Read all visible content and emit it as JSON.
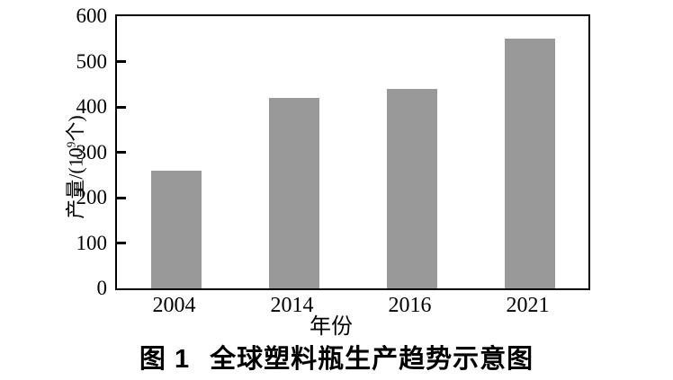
{
  "figure": {
    "caption_label": "图 1",
    "caption_title": "全球塑料瓶生产趋势示意图"
  },
  "chart_data": {
    "type": "bar",
    "categories": [
      "2004",
      "2014",
      "2016",
      "2021"
    ],
    "values": [
      260,
      420,
      440,
      550
    ],
    "title": "图 1 全球塑料瓶生产趋势示意图",
    "xlabel": "年份",
    "ylabel": "产量/(10⁹个)",
    "ylabel_parts": {
      "prefix": "产量/(10",
      "superscript": "9",
      "suffix": "个)"
    },
    "ylim": [
      0,
      600
    ],
    "yticks": [
      0,
      100,
      200,
      300,
      400,
      500,
      600
    ],
    "grid": false,
    "legend": "none",
    "bar_color": "#999999",
    "axis_color": "#000000",
    "background_color": "#ffffff"
  }
}
